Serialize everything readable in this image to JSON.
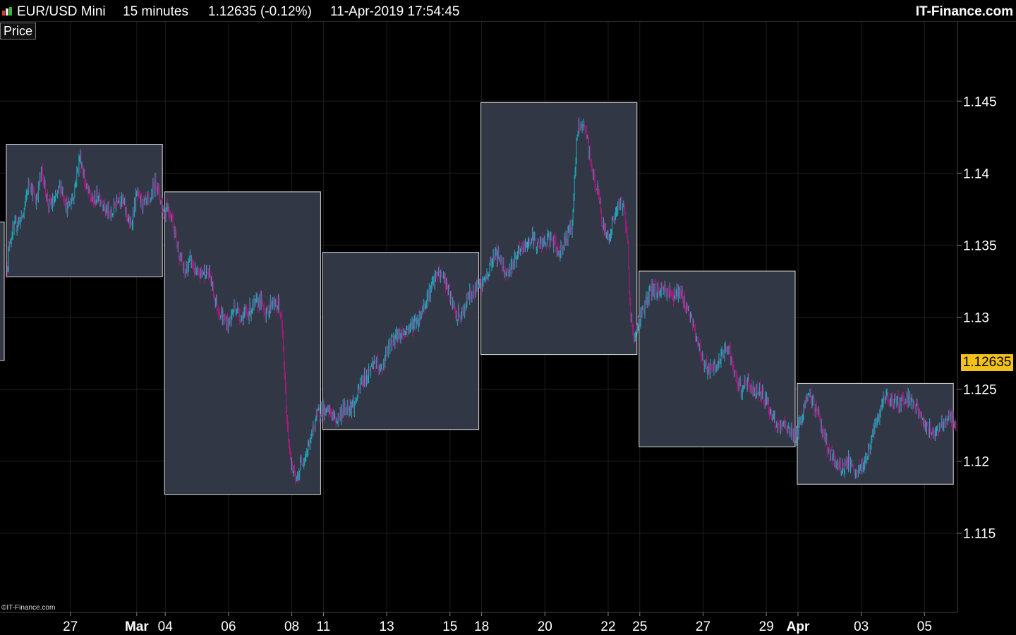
{
  "header": {
    "instrument": "EUR/USD Mini",
    "timeframe": "15 minutes",
    "quote": "1.12635 (-0.12%)",
    "datetime": "11-Apr-2019 17:54:45",
    "brand": "IT-Finance.com"
  },
  "panel": {
    "label": "Price"
  },
  "footer": {
    "copyright": "©IT-Finance.com"
  },
  "colors": {
    "background": "#000000",
    "up": "#16b2bd",
    "down": "#b1177d",
    "box_fill": "#323746",
    "box_border": "#d8d8d8",
    "price_tag": "#f2c21b"
  },
  "chart_data": {
    "type": "bar",
    "title": "",
    "xlabel": "",
    "ylabel": "",
    "ylim": [
      1.1095,
      1.1505
    ],
    "current_price": "1.12635",
    "y_ticks": [
      "1.145",
      "1.14",
      "1.135",
      "1.13",
      "1.125",
      "1.12",
      "1.115"
    ],
    "x_ticks": [
      {
        "label": "27",
        "bold": false
      },
      {
        "label": "Mar",
        "bold": true
      },
      {
        "label": "04",
        "bold": false
      },
      {
        "label": "06",
        "bold": false
      },
      {
        "label": "08",
        "bold": false
      },
      {
        "label": "11",
        "bold": false
      },
      {
        "label": "13",
        "bold": false
      },
      {
        "label": "15",
        "bold": false
      },
      {
        "label": "18",
        "bold": false
      },
      {
        "label": "20",
        "bold": false
      },
      {
        "label": "22",
        "bold": false
      },
      {
        "label": "25",
        "bold": false
      },
      {
        "label": "27",
        "bold": false
      },
      {
        "label": "29",
        "bold": false
      },
      {
        "label": "Apr",
        "bold": true
      },
      {
        "label": "03",
        "bold": false
      },
      {
        "label": "05",
        "bold": false
      }
    ],
    "week_ranges": [
      {
        "week": "Feb 25",
        "high": 1.142,
        "low": 1.1328
      },
      {
        "week": "Mar 04",
        "high": 1.1387,
        "low": 1.1177
      },
      {
        "week": "Mar 11",
        "high": 1.1345,
        "low": 1.1222
      },
      {
        "week": "Mar 18",
        "high": 1.1449,
        "low": 1.1274
      },
      {
        "week": "Mar 25",
        "high": 1.1332,
        "low": 1.121
      },
      {
        "week": "Apr 01",
        "high": 1.1254,
        "low": 1.1184
      }
    ],
    "path": [
      [
        0.0,
        1.1335
      ],
      [
        0.02,
        1.1355
      ],
      [
        0.06,
        1.1365
      ],
      [
        0.1,
        1.137
      ],
      [
        0.14,
        1.1395
      ],
      [
        0.18,
        1.138
      ],
      [
        0.22,
        1.1402
      ],
      [
        0.26,
        1.1378
      ],
      [
        0.3,
        1.138
      ],
      [
        0.34,
        1.1392
      ],
      [
        0.38,
        1.1375
      ],
      [
        0.42,
        1.1385
      ],
      [
        0.46,
        1.1412
      ],
      [
        0.5,
        1.139
      ],
      [
        0.54,
        1.138
      ],
      [
        0.58,
        1.1385
      ],
      [
        0.62,
        1.1375
      ],
      [
        0.66,
        1.137
      ],
      [
        0.7,
        1.1385
      ],
      [
        0.74,
        1.1378
      ],
      [
        0.78,
        1.1362
      ],
      [
        0.82,
        1.1385
      ],
      [
        0.86,
        1.1378
      ],
      [
        0.9,
        1.138
      ],
      [
        0.94,
        1.1395
      ],
      [
        1.0,
        1.1368
      ],
      [
        1.0,
        1.138
      ],
      [
        1.04,
        1.137
      ],
      [
        1.08,
        1.1348
      ],
      [
        1.12,
        1.133
      ],
      [
        1.16,
        1.134
      ],
      [
        1.2,
        1.1328
      ],
      [
        1.24,
        1.1332
      ],
      [
        1.28,
        1.133
      ],
      [
        1.32,
        1.131
      ],
      [
        1.36,
        1.13
      ],
      [
        1.4,
        1.1295
      ],
      [
        1.44,
        1.1308
      ],
      [
        1.48,
        1.13
      ],
      [
        1.52,
        1.1303
      ],
      [
        1.56,
        1.1308
      ],
      [
        1.6,
        1.1312
      ],
      [
        1.64,
        1.1302
      ],
      [
        1.68,
        1.1312
      ],
      [
        1.7,
        1.1306
      ],
      [
        1.72,
        1.131
      ],
      [
        1.74,
        1.129
      ],
      [
        1.77,
        1.1225
      ],
      [
        1.8,
        1.1195
      ],
      [
        1.83,
        1.1185
      ],
      [
        1.86,
        1.12
      ],
      [
        1.89,
        1.1205
      ],
      [
        1.92,
        1.1215
      ],
      [
        1.95,
        1.123
      ],
      [
        1.98,
        1.1235
      ],
      [
        2.0,
        1.1238
      ],
      [
        2.0,
        1.1232
      ],
      [
        2.04,
        1.1235
      ],
      [
        2.08,
        1.1228
      ],
      [
        2.12,
        1.1235
      ],
      [
        2.16,
        1.1238
      ],
      [
        2.2,
        1.124
      ],
      [
        2.24,
        1.1255
      ],
      [
        2.28,
        1.126
      ],
      [
        2.32,
        1.127
      ],
      [
        2.36,
        1.1262
      ],
      [
        2.4,
        1.1275
      ],
      [
        2.44,
        1.1285
      ],
      [
        2.48,
        1.1288
      ],
      [
        2.52,
        1.129
      ],
      [
        2.56,
        1.1295
      ],
      [
        2.6,
        1.1298
      ],
      [
        2.64,
        1.131
      ],
      [
        2.68,
        1.132
      ],
      [
        2.72,
        1.133
      ],
      [
        2.76,
        1.1328
      ],
      [
        2.8,
        1.1315
      ],
      [
        2.84,
        1.13
      ],
      [
        2.88,
        1.1302
      ],
      [
        2.92,
        1.1315
      ],
      [
        2.96,
        1.1318
      ],
      [
        2.99,
        1.133
      ],
      [
        3.0,
        1.132
      ],
      [
        3.0,
        1.1322
      ],
      [
        3.04,
        1.133
      ],
      [
        3.08,
        1.1345
      ],
      [
        3.12,
        1.134
      ],
      [
        3.16,
        1.133
      ],
      [
        3.2,
        1.1338
      ],
      [
        3.24,
        1.1345
      ],
      [
        3.28,
        1.135
      ],
      [
        3.32,
        1.1355
      ],
      [
        3.36,
        1.135
      ],
      [
        3.4,
        1.1352
      ],
      [
        3.44,
        1.1355
      ],
      [
        3.48,
        1.1345
      ],
      [
        3.52,
        1.135
      ],
      [
        3.55,
        1.136
      ],
      [
        3.57,
        1.1362
      ],
      [
        3.6,
        1.142
      ],
      [
        3.62,
        1.1435
      ],
      [
        3.66,
        1.1428
      ],
      [
        3.7,
        1.14
      ],
      [
        3.74,
        1.1385
      ],
      [
        3.76,
        1.1365
      ],
      [
        3.8,
        1.1355
      ],
      [
        3.84,
        1.137
      ],
      [
        3.88,
        1.138
      ],
      [
        3.9,
        1.1375
      ],
      [
        3.92,
        1.136
      ],
      [
        3.94,
        1.13
      ],
      [
        3.97,
        1.1285
      ],
      [
        4.0,
        1.13
      ],
      [
        4.0,
        1.13
      ],
      [
        4.04,
        1.131
      ],
      [
        4.08,
        1.132
      ],
      [
        4.12,
        1.1318
      ],
      [
        4.16,
        1.132
      ],
      [
        4.2,
        1.1315
      ],
      [
        4.24,
        1.1318
      ],
      [
        4.28,
        1.1312
      ],
      [
        4.32,
        1.13
      ],
      [
        4.36,
        1.1285
      ],
      [
        4.4,
        1.127
      ],
      [
        4.44,
        1.1262
      ],
      [
        4.48,
        1.1265
      ],
      [
        4.52,
        1.1272
      ],
      [
        4.56,
        1.128
      ],
      [
        4.6,
        1.1258
      ],
      [
        4.64,
        1.125
      ],
      [
        4.68,
        1.1255
      ],
      [
        4.72,
        1.1248
      ],
      [
        4.76,
        1.125
      ],
      [
        4.8,
        1.1242
      ],
      [
        4.84,
        1.123
      ],
      [
        4.88,
        1.1222
      ],
      [
        4.92,
        1.1225
      ],
      [
        4.96,
        1.122
      ],
      [
        5.0,
        1.1218
      ],
      [
        5.0,
        1.1222
      ],
      [
        5.04,
        1.1238
      ],
      [
        5.08,
        1.1245
      ],
      [
        5.12,
        1.1235
      ],
      [
        5.16,
        1.122
      ],
      [
        5.2,
        1.1205
      ],
      [
        5.24,
        1.1198
      ],
      [
        5.28,
        1.1195
      ],
      [
        5.32,
        1.12
      ],
      [
        5.36,
        1.119
      ],
      [
        5.4,
        1.1195
      ],
      [
        5.44,
        1.1205
      ],
      [
        5.48,
        1.122
      ],
      [
        5.52,
        1.1235
      ],
      [
        5.56,
        1.1245
      ],
      [
        5.6,
        1.1242
      ],
      [
        5.64,
        1.124
      ],
      [
        5.68,
        1.1245
      ],
      [
        5.72,
        1.1242
      ],
      [
        5.76,
        1.1235
      ],
      [
        5.8,
        1.1225
      ],
      [
        5.84,
        1.122
      ],
      [
        5.88,
        1.1222
      ],
      [
        5.92,
        1.1228
      ],
      [
        5.96,
        1.1232
      ],
      [
        5.99,
        1.1225
      ],
      [
        6.0,
        1.122
      ]
    ]
  }
}
